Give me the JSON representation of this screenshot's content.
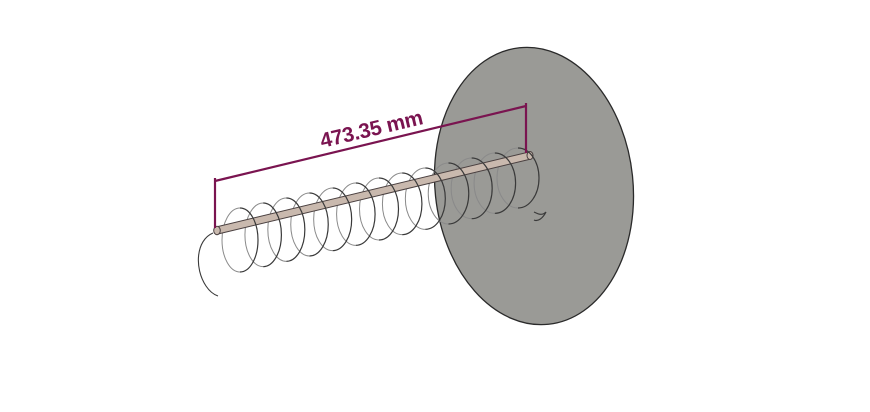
{
  "dimension": {
    "label": "473.35 mm",
    "color": "#7a1450"
  },
  "colors": {
    "disc_fill": "#9a9a96",
    "disc_edge": "#2a2a2a",
    "rod_fill": "#c9b9ae",
    "rod_edge": "#4a4040",
    "spring": "#3a3a3a"
  }
}
